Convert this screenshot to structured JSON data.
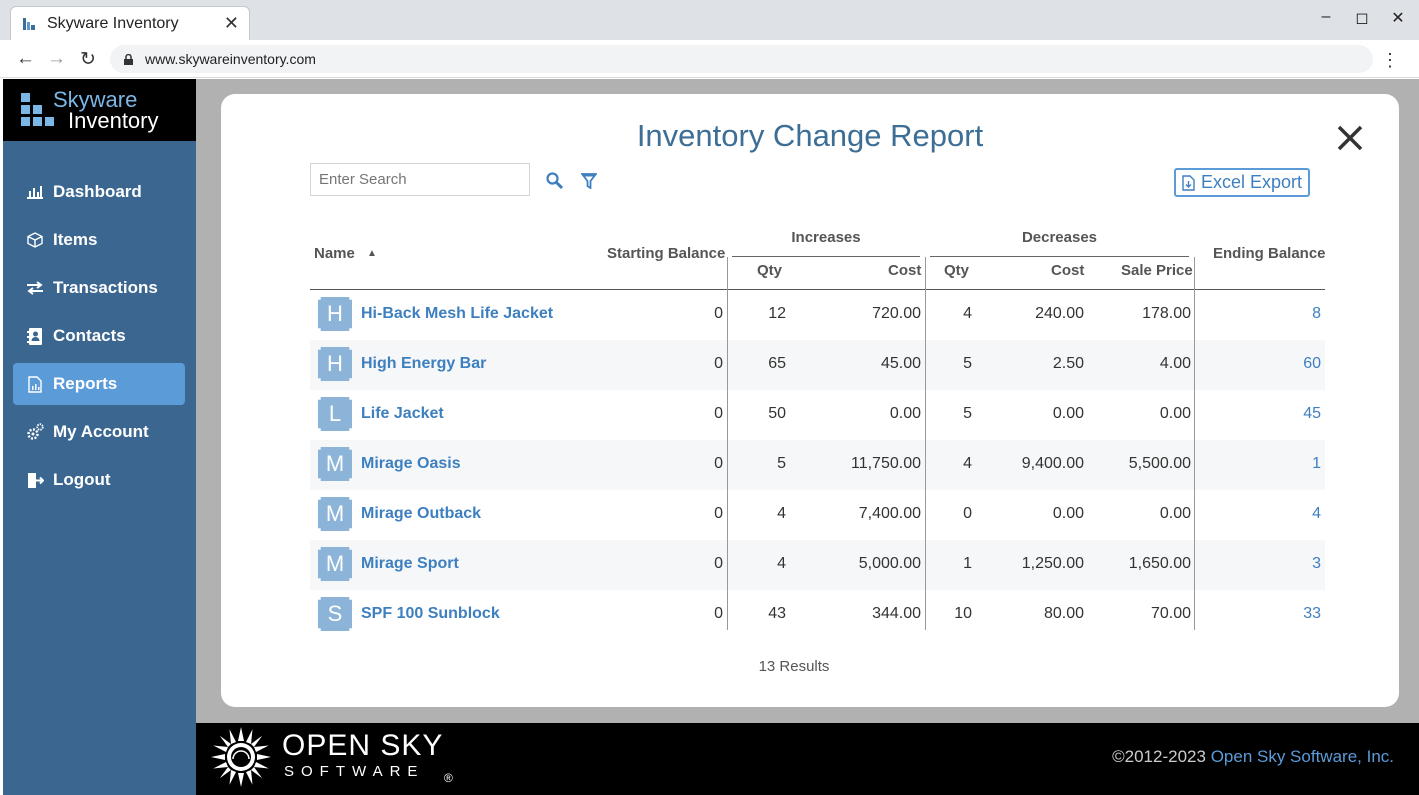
{
  "browser": {
    "tab_title": "Skyware Inventory",
    "url": "www.skywareinventory.com"
  },
  "app": {
    "logo_line1": "Skyware",
    "logo_line2": "Inventory"
  },
  "sidebar": {
    "items": [
      {
        "label": "Dashboard",
        "icon": "bar-chart-icon",
        "active": false
      },
      {
        "label": "Items",
        "icon": "cube-icon",
        "active": false
      },
      {
        "label": "Transactions",
        "icon": "swap-arrows-icon",
        "active": false
      },
      {
        "label": "Contacts",
        "icon": "address-book-icon",
        "active": false
      },
      {
        "label": "Reports",
        "icon": "report-icon",
        "active": true
      },
      {
        "label": "My Account",
        "icon": "gears-icon",
        "active": false
      },
      {
        "label": "Logout",
        "icon": "logout-icon",
        "active": false
      }
    ]
  },
  "report": {
    "title": "Inventory Change Report",
    "search_placeholder": "Enter Search",
    "excel_label": "Excel Export",
    "results": "13 Results",
    "headers": {
      "name": "Name",
      "starting": "Starting Balance",
      "increases": "Increases",
      "decreases": "Decreases",
      "ending": "Ending Balance",
      "inc_qty": "Qty",
      "inc_cost": "Cost",
      "dec_qty": "Qty",
      "dec_cost": "Cost",
      "sale_price": "Sale Price"
    },
    "rows": [
      {
        "initial": "H",
        "name": "Hi-Back Mesh Life Jacket",
        "start": "0",
        "inc_qty": "12",
        "inc_cost": "720.00",
        "dec_qty": "4",
        "dec_cost": "240.00",
        "sale": "178.00",
        "end": "8"
      },
      {
        "initial": "H",
        "name": "High Energy Bar",
        "start": "0",
        "inc_qty": "65",
        "inc_cost": "45.00",
        "dec_qty": "5",
        "dec_cost": "2.50",
        "sale": "4.00",
        "end": "60"
      },
      {
        "initial": "L",
        "name": "Life Jacket",
        "start": "0",
        "inc_qty": "50",
        "inc_cost": "0.00",
        "dec_qty": "5",
        "dec_cost": "0.00",
        "sale": "0.00",
        "end": "45"
      },
      {
        "initial": "M",
        "name": "Mirage Oasis",
        "start": "0",
        "inc_qty": "5",
        "inc_cost": "11,750.00",
        "dec_qty": "4",
        "dec_cost": "9,400.00",
        "sale": "5,500.00",
        "end": "1"
      },
      {
        "initial": "M",
        "name": "Mirage Outback",
        "start": "0",
        "inc_qty": "4",
        "inc_cost": "7,400.00",
        "dec_qty": "0",
        "dec_cost": "0.00",
        "sale": "0.00",
        "end": "4"
      },
      {
        "initial": "M",
        "name": "Mirage Sport",
        "start": "0",
        "inc_qty": "4",
        "inc_cost": "5,000.00",
        "dec_qty": "1",
        "dec_cost": "1,250.00",
        "sale": "1,650.00",
        "end": "3"
      },
      {
        "initial": "S",
        "name": "SPF 100 Sunblock",
        "start": "0",
        "inc_qty": "43",
        "inc_cost": "344.00",
        "dec_qty": "10",
        "dec_cost": "80.00",
        "sale": "70.00",
        "end": "33"
      }
    ]
  },
  "footer": {
    "brand_line1": "OPEN SKY",
    "brand_line2": "SOFTWARE",
    "reg_mark": "®",
    "copyright": "©2012-2023",
    "company": "Open Sky Software, Inc."
  },
  "colors": {
    "sidebar": "#3a6690",
    "accent": "#5b9bd8",
    "link": "#3d7fbf"
  }
}
